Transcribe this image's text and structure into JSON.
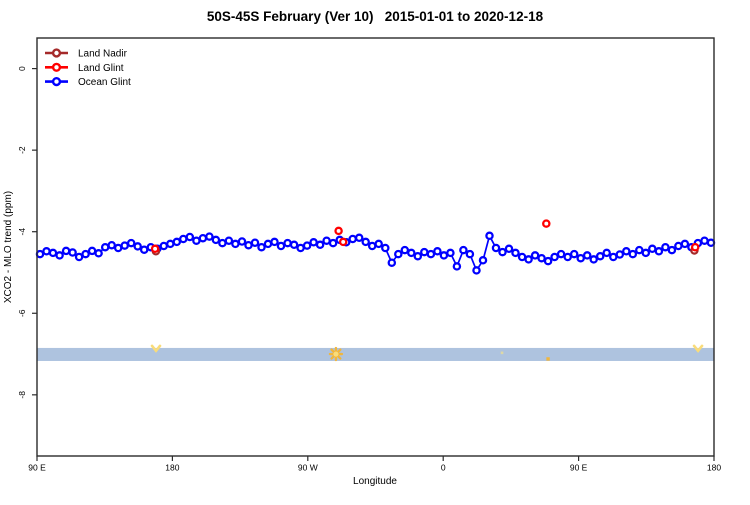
{
  "title": "50S-45S February (Ver 10)   2015-01-01 to 2020-12-18",
  "colors": {
    "land_nadir": "#A52A2A",
    "land_glint": "#FF0000",
    "ocean_glint": "#0000FF",
    "band": "#AEC3DF",
    "sun_marker": "#F0B63E",
    "sun_marker_light": "#F9DC7A",
    "axis": "#2B2B2B",
    "marker_fill": "#FFFFFF"
  },
  "legend": {
    "items": [
      {
        "label": "Land Nadir",
        "color": "#A52A2A"
      },
      {
        "label": "Land Glint",
        "color": "#FF0000"
      },
      {
        "label": "Ocean Glint",
        "color": "#0000FF"
      }
    ]
  },
  "chart_data": {
    "type": "line",
    "title": "50S-45S February (Ver 10)   2015-01-01 to 2020-12-18",
    "xlabel": "Longitude",
    "ylabel": "XCO2 - MLO trend (ppm)",
    "xlim": [
      90,
      540
    ],
    "ylim": [
      -9.5,
      0.75
    ],
    "grid": false,
    "legend_position": "top-left",
    "x_ticks": [
      {
        "value": 90,
        "label": "90 E"
      },
      {
        "value": 180,
        "label": "180"
      },
      {
        "value": 270,
        "label": "90 W"
      },
      {
        "value": 360,
        "label": "0"
      },
      {
        "value": 450,
        "label": "90 E"
      },
      {
        "value": 540,
        "label": "180"
      }
    ],
    "y_ticks": [
      {
        "value": 0,
        "label": "0"
      },
      {
        "value": -2,
        "label": "-2"
      },
      {
        "value": -4,
        "label": "-4"
      },
      {
        "value": -6,
        "label": "-6"
      },
      {
        "value": -8,
        "label": "-8"
      }
    ],
    "series": [
      {
        "name": "Ocean Glint",
        "color": "#0000FF",
        "marker": "open-circle",
        "line": true,
        "lon_start": 92,
        "lon_step": 4.33,
        "values": [
          -4.55,
          -4.48,
          -4.52,
          -4.58,
          -4.47,
          -4.51,
          -4.62,
          -4.55,
          -4.47,
          -4.53,
          -4.38,
          -4.33,
          -4.4,
          -4.34,
          -4.28,
          -4.36,
          -4.44,
          -4.38,
          -4.42,
          -4.35,
          -4.3,
          -4.25,
          -4.18,
          -4.13,
          -4.22,
          -4.16,
          -4.12,
          -4.2,
          -4.28,
          -4.22,
          -4.3,
          -4.24,
          -4.33,
          -4.27,
          -4.38,
          -4.3,
          -4.25,
          -4.35,
          -4.28,
          -4.32,
          -4.4,
          -4.34,
          -4.26,
          -4.32,
          -4.22,
          -4.28,
          -4.2,
          -4.26,
          -4.18,
          -4.15,
          -4.25,
          -4.35,
          -4.3,
          -4.4,
          -4.76,
          -4.55,
          -4.45,
          -4.52,
          -4.6,
          -4.5,
          -4.55,
          -4.48,
          -4.58,
          -4.52,
          -4.85,
          -4.45,
          -4.55,
          -4.95,
          -4.7,
          -4.1,
          -4.4,
          -4.5,
          -4.42,
          -4.52,
          -4.62,
          -4.68,
          -4.58,
          -4.65,
          -4.72,
          -4.62,
          -4.55,
          -4.62,
          -4.55,
          -4.65,
          -4.58,
          -4.68,
          -4.6,
          -4.52,
          -4.62,
          -4.56,
          -4.48,
          -4.55,
          -4.45,
          -4.52,
          -4.42,
          -4.48,
          -4.38,
          -4.45,
          -4.35,
          -4.3,
          -4.38,
          -4.28,
          -4.22,
          -4.27
        ]
      },
      {
        "name": "Land Nadir",
        "color": "#A52A2A",
        "marker": "open-circle",
        "line": false,
        "points": [
          [
            169.0,
            -4.48
          ],
          [
            527.0,
            -4.46
          ]
        ]
      },
      {
        "name": "Land Glint",
        "color": "#FF0000",
        "marker": "open-circle",
        "line": false,
        "points": [
          [
            168.5,
            -4.42
          ],
          [
            290.5,
            -3.98
          ],
          [
            293.5,
            -4.25
          ],
          [
            428.5,
            -3.8
          ],
          [
            527.5,
            -4.38
          ]
        ]
      }
    ],
    "band": {
      "color": "#AEC3DF",
      "ppm_top": -6.85,
      "ppm_bottom": -7.17
    },
    "band_markers": [
      {
        "lon": 169.1,
        "ppm": -6.86,
        "kind": "sun-half"
      },
      {
        "lon": 288.7,
        "ppm": -7.0,
        "kind": "sun-large"
      },
      {
        "lon": 399.1,
        "ppm": -6.97,
        "kind": "dot-faint"
      },
      {
        "lon": 429.7,
        "ppm": -7.12,
        "kind": "dot"
      },
      {
        "lon": 529.4,
        "ppm": -6.86,
        "kind": "sun-half"
      }
    ]
  }
}
